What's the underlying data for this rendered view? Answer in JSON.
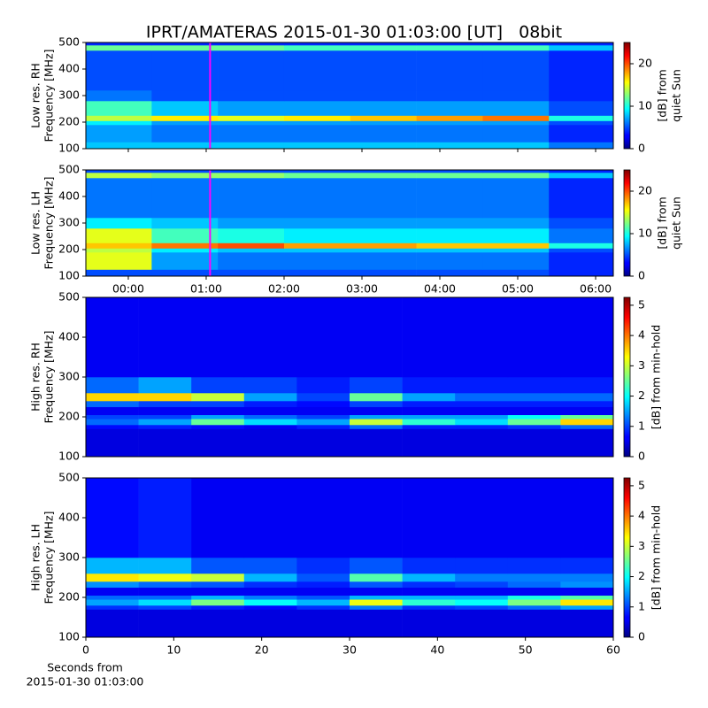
{
  "chart_data": [
    {
      "type": "heatmap",
      "title": "IPRT/AMATERAS 2015-01-30 01:03:00 [UT]   08bit",
      "ylabel": [
        "Low res. RH",
        "Frequency [MHz]"
      ],
      "colorbar_label": [
        "[dB] from",
        "quiet Sun"
      ],
      "colormap": "jet",
      "xlim": [
        -0.545,
        6.227
      ],
      "xticks": [
        {
          "value": 0,
          "label": "00:00"
        },
        {
          "value": 1,
          "label": "01:00"
        },
        {
          "value": 2,
          "label": "02:00"
        },
        {
          "value": 3,
          "label": "03:00"
        },
        {
          "value": 4,
          "label": "04:00"
        },
        {
          "value": 5,
          "label": "05:00"
        },
        {
          "value": 6,
          "label": "06:00"
        }
      ],
      "xticklabels": false,
      "ylim": [
        100,
        500
      ],
      "yticks": [
        100,
        200,
        300,
        400,
        500
      ],
      "clim": [
        0,
        25
      ],
      "cticks": [
        0,
        10,
        20
      ],
      "marker_x": 1.05,
      "marker_color": "#ff00ff",
      "xbins": [
        -0.545,
        0.3,
        1.15,
        2.0,
        2.85,
        3.7,
        4.55,
        5.4,
        6.227
      ],
      "ybins": [
        100,
        125,
        190,
        205,
        225,
        280,
        320,
        470,
        490,
        500
      ],
      "z": [
        [
          8,
          8,
          8,
          8,
          8,
          8,
          8,
          6
        ],
        [
          7,
          6,
          6,
          6,
          6,
          6,
          6,
          4
        ],
        [
          9,
          7,
          7,
          7,
          7,
          7,
          7,
          5
        ],
        [
          14,
          16,
          15,
          16,
          17,
          18,
          19,
          10
        ],
        [
          11,
          8,
          7,
          7,
          7,
          7,
          7,
          5
        ],
        [
          6,
          5,
          5,
          5,
          5,
          5,
          5,
          4
        ],
        [
          5,
          5,
          5,
          5,
          5,
          5,
          5,
          4
        ],
        [
          12,
          12,
          12,
          11,
          11,
          11,
          11,
          8
        ],
        [
          4,
          4,
          4,
          4,
          4,
          4,
          4,
          4
        ]
      ]
    },
    {
      "type": "heatmap",
      "ylabel": [
        "Low res. LH",
        "Frequency [MHz]"
      ],
      "colorbar_label": [
        "[dB] from",
        "quiet Sun"
      ],
      "colormap": "jet",
      "xlim": [
        -0.545,
        6.227
      ],
      "xticks": [
        {
          "value": 0,
          "label": "00:00"
        },
        {
          "value": 1,
          "label": "01:00"
        },
        {
          "value": 2,
          "label": "02:00"
        },
        {
          "value": 3,
          "label": "03:00"
        },
        {
          "value": 4,
          "label": "04:00"
        },
        {
          "value": 5,
          "label": "05:00"
        },
        {
          "value": 6,
          "label": "06:00"
        }
      ],
      "ylim": [
        100,
        500
      ],
      "yticks": [
        100,
        200,
        300,
        400,
        500
      ],
      "clim": [
        0,
        25
      ],
      "cticks": [
        0,
        10,
        20
      ],
      "marker_x": 1.05,
      "marker_color": "#ff00ff",
      "xbins": [
        -0.545,
        0.3,
        1.15,
        2.0,
        2.85,
        3.7,
        4.55,
        5.4,
        6.227
      ],
      "ybins": [
        100,
        125,
        190,
        205,
        225,
        280,
        320,
        470,
        490,
        500
      ],
      "z": [
        [
          5,
          5,
          5,
          5,
          5,
          5,
          5,
          4
        ],
        [
          15,
          7,
          6,
          6,
          6,
          6,
          6,
          4
        ],
        [
          14,
          9,
          8,
          8,
          8,
          8,
          8,
          5
        ],
        [
          17,
          19,
          20,
          18,
          18,
          17,
          17,
          10
        ],
        [
          15,
          11,
          10,
          9,
          9,
          9,
          9,
          6
        ],
        [
          9,
          8,
          7,
          7,
          7,
          7,
          7,
          5
        ],
        [
          6,
          6,
          6,
          6,
          6,
          6,
          6,
          4
        ],
        [
          14,
          13,
          13,
          12,
          12,
          12,
          12,
          8
        ],
        [
          5,
          5,
          5,
          5,
          5,
          5,
          5,
          4
        ]
      ]
    },
    {
      "type": "heatmap",
      "ylabel": [
        "High res. RH",
        "Frequency [MHz]"
      ],
      "colorbar_label": [
        "[dB] from min-hold"
      ],
      "colormap": "jet",
      "xlim": [
        0,
        60
      ],
      "ylim": [
        100,
        500
      ],
      "yticks": [
        100,
        200,
        300,
        400,
        500
      ],
      "clim": [
        0,
        5.26
      ],
      "cticks": [
        0,
        1,
        2,
        3,
        4,
        5
      ],
      "xbins": [
        0,
        6,
        12,
        18,
        24,
        30,
        36,
        42,
        48,
        54,
        60
      ],
      "ybins": [
        100,
        170,
        180,
        195,
        205,
        225,
        240,
        260,
        300,
        500
      ],
      "z": [
        [
          0.5,
          0.5,
          0.5,
          0.5,
          0.5,
          0.5,
          0.5,
          0.5,
          0.5,
          0.5
        ],
        [
          0.7,
          0.8,
          0.7,
          0.6,
          0.8,
          1.2,
          0.8,
          0.8,
          0.9,
          1.2
        ],
        [
          1.2,
          1.5,
          2.5,
          1.8,
          1.5,
          3,
          2.2,
          1.8,
          2.5,
          3.5
        ],
        [
          1,
          1,
          1.5,
          1.2,
          1,
          1.5,
          1.5,
          1.5,
          2,
          2.5
        ],
        [
          0.6,
          0.6,
          0.6,
          0.6,
          0.6,
          0.6,
          0.6,
          0.6,
          0.6,
          0.6
        ],
        [
          1.2,
          1,
          1,
          0.8,
          0.7,
          1,
          0.8,
          0.8,
          0.8,
          0.8
        ],
        [
          3.5,
          3.5,
          3,
          1.5,
          1,
          2.5,
          1.5,
          1.2,
          1.2,
          1.2
        ],
        [
          1.2,
          1.5,
          1,
          1,
          0.8,
          1,
          0.8,
          0.8,
          0.8,
          0.8
        ],
        [
          0.6,
          0.6,
          0.6,
          0.6,
          0.6,
          0.6,
          0.6,
          0.6,
          0.6,
          0.6
        ]
      ]
    },
    {
      "type": "heatmap",
      "ylabel": [
        "High res. LH",
        "Frequency [MHz]"
      ],
      "colorbar_label": [
        "[dB] from min-hold"
      ],
      "colormap": "jet",
      "xlabel": [
        "Seconds from",
        "2015-01-30 01:03:00"
      ],
      "xlim": [
        0,
        60
      ],
      "xticks": [
        0,
        10,
        20,
        30,
        40,
        50,
        60
      ],
      "ylim": [
        100,
        500
      ],
      "yticks": [
        100,
        200,
        300,
        400,
        500
      ],
      "clim": [
        0,
        5.26
      ],
      "cticks": [
        0,
        1,
        2,
        3,
        4,
        5
      ],
      "xbins": [
        0,
        6,
        12,
        18,
        24,
        30,
        36,
        42,
        48,
        54,
        60
      ],
      "ybins": [
        100,
        170,
        180,
        195,
        205,
        225,
        240,
        260,
        300,
        500
      ],
      "z": [
        [
          0.5,
          0.5,
          0.5,
          0.5,
          0.5,
          0.5,
          0.5,
          0.5,
          0.5,
          0.5
        ],
        [
          0.9,
          1,
          0.8,
          0.7,
          0.9,
          1.3,
          0.9,
          1,
          1.2,
          1.5
        ],
        [
          1.5,
          1.8,
          2.6,
          2,
          1.6,
          3.2,
          2.2,
          2,
          2.6,
          3.4
        ],
        [
          1.2,
          1.2,
          1.6,
          1.3,
          1.1,
          1.6,
          1.6,
          1.6,
          2.1,
          2.4
        ],
        [
          0.6,
          0.6,
          0.6,
          0.6,
          0.6,
          0.6,
          0.6,
          0.6,
          0.6,
          0.6
        ],
        [
          1.4,
          1.2,
          1.1,
          0.9,
          0.8,
          1.1,
          0.9,
          1,
          1.2,
          1.4
        ],
        [
          3.4,
          3.2,
          3,
          1.6,
          1.1,
          2.4,
          1.6,
          1.3,
          1.3,
          1.3
        ],
        [
          1.6,
          1.6,
          1.1,
          1.1,
          0.9,
          1.1,
          0.9,
          0.9,
          0.9,
          0.9
        ],
        [
          0.7,
          0.8,
          0.6,
          0.6,
          0.6,
          0.6,
          0.6,
          0.6,
          0.6,
          0.6
        ]
      ]
    }
  ]
}
